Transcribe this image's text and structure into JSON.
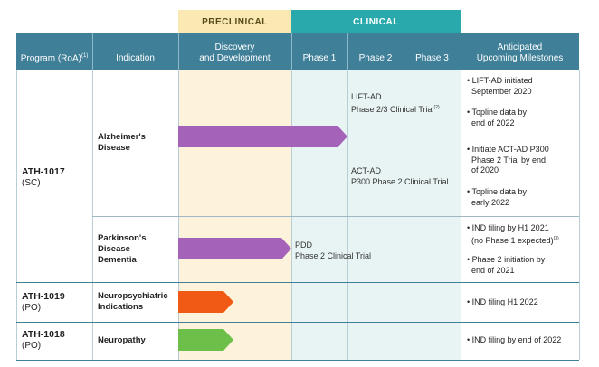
{
  "stages": {
    "preclinical": "PRECLINICAL",
    "clinical": "CLINICAL"
  },
  "headers": {
    "program": "Program (RoA)",
    "program_note": "(1)",
    "indication": "Indication",
    "discovery_line1": "Discovery",
    "discovery_line2": "and Development",
    "phase1": "Phase 1",
    "phase2": "Phase 2",
    "phase3": "Phase 3",
    "milestones_line1": "Anticipated",
    "milestones_line2": "Upcoming Milestones"
  },
  "colors": {
    "header": "#3f7f98",
    "preclinical": "#fbe9b3",
    "clinical": "#2aa9ac",
    "purple": "#a462b8",
    "orange": "#f05a14",
    "green": "#6cbf49"
  },
  "programs": [
    {
      "name": "ATH-1017",
      "route": "(SC)",
      "rows": [
        {
          "indication": [
            "Alzheimer's",
            "Disease"
          ],
          "bar_color": "purple",
          "trials": [
            {
              "line1": "LIFT-AD",
              "line2": "Phase 2/3 Clinical Trial",
              "note": "(2)"
            },
            {
              "line1": "ACT-AD",
              "line2": "P300 Phase 2 Clinical Trial",
              "note": ""
            }
          ],
          "milestones": [
            {
              "lines": [
                "LIFT-AD initiated",
                "September 2020"
              ]
            },
            {
              "lines": [
                "Topline data by",
                "end of 2022"
              ]
            },
            {
              "lines": [
                "Initiate ACT-AD P300",
                "Phase 2 Trial by end",
                "of 2020"
              ]
            },
            {
              "lines": [
                "Topline data by",
                "early 2022"
              ]
            }
          ]
        },
        {
          "indication": [
            "Parkinson's",
            "Disease",
            "Dementia"
          ],
          "bar_color": "purple",
          "trials": [
            {
              "line1": "PDD",
              "line2": "Phase 2 Clinical Trial",
              "note": ""
            }
          ],
          "milestones": [
            {
              "lines": [
                "IND filing by H1 2021",
                "(no Phase 1 expected)"
              ],
              "note": "(3)"
            },
            {
              "lines": [
                "Phase 2 initiation by",
                "end of 2021"
              ]
            }
          ]
        }
      ]
    },
    {
      "name": "ATH-1019",
      "route": "(PO)",
      "rows": [
        {
          "indication": [
            "Neuropsychiatric",
            "Indications"
          ],
          "bar_color": "orange",
          "milestones": [
            {
              "lines": [
                "IND filing H1 2022"
              ]
            }
          ]
        }
      ]
    },
    {
      "name": "ATH-1018",
      "route": "(PO)",
      "rows": [
        {
          "indication": [
            "Neuropathy"
          ],
          "bar_color": "green",
          "milestones": [
            {
              "lines": [
                "IND filing by end of 2022"
              ]
            }
          ]
        }
      ]
    }
  ]
}
